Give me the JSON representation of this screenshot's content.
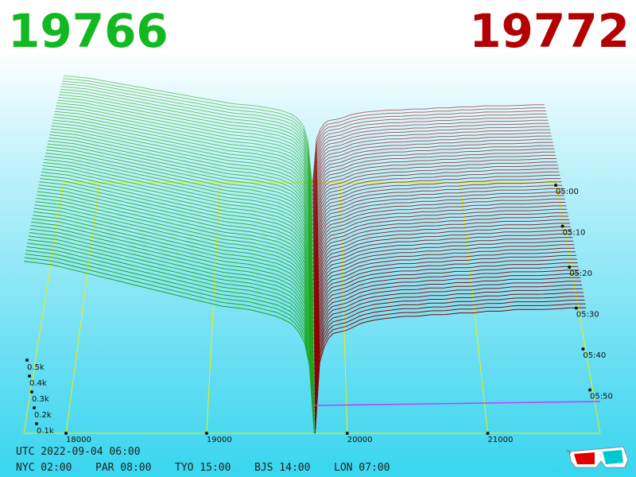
{
  "header": {
    "left_value": "19766",
    "right_value": "19772"
  },
  "colors": {
    "left": "#12b81f",
    "right": "#b30000",
    "line_left": "#1ca61c",
    "line_right": "#8b0000",
    "frame": "#f0f000",
    "front_line": "#c040ff"
  },
  "footer": {
    "utc": "UTC 2022-09-04 06:00",
    "cities": [
      {
        "label": "NYC 02:00"
      },
      {
        "label": "PAR 08:00"
      },
      {
        "label": "TYO 15:00"
      },
      {
        "label": "BJS 14:00"
      },
      {
        "label": "LON 07:00"
      }
    ]
  },
  "icon": "3d-glasses-icon",
  "chart_data": {
    "type": "area",
    "style": "3d-waterfall",
    "x_ticks": [
      "18000",
      "19000",
      "20000",
      "21000"
    ],
    "x_tick_values": [
      18000,
      19000,
      20000,
      21000
    ],
    "y_ticks": [
      "0.1k",
      "0.2k",
      "0.3k",
      "0.4k",
      "0.5k"
    ],
    "y_tick_values": [
      100,
      200,
      300,
      400,
      500
    ],
    "time_ticks": [
      "05:00",
      "05:10",
      "05:20",
      "05:30",
      "05:40",
      "05:50"
    ],
    "xlim": [
      17700,
      21800
    ],
    "ylim": [
      0,
      520
    ],
    "series": [
      {
        "x": [
          17700,
          17800,
          17900,
          18000,
          18100,
          18200,
          18300,
          18400,
          18500,
          18600,
          18700,
          18800,
          18900,
          19000,
          19100,
          19200,
          19300,
          19400,
          19500,
          19550,
          19600,
          19650,
          19700,
          19740,
          19766
        ],
        "y": [
          500,
          495,
          490,
          480,
          470,
          460,
          450,
          440,
          430,
          420,
          410,
          400,
          390,
          380,
          370,
          365,
          360,
          350,
          340,
          330,
          320,
          300,
          260,
          180,
          0
        ]
      },
      {
        "x": [
          19772,
          19800,
          19850,
          19900,
          20000,
          20100,
          20200,
          20300,
          20400,
          20500,
          20600,
          20700,
          20800,
          20900,
          21000,
          21100,
          21200,
          21300,
          21400,
          21500,
          21600,
          21700
        ],
        "y": [
          0,
          200,
          270,
          290,
          300,
          320,
          330,
          335,
          340,
          340,
          345,
          345,
          350,
          350,
          355,
          355,
          360,
          360,
          360,
          362,
          365,
          365
        ]
      }
    ]
  }
}
